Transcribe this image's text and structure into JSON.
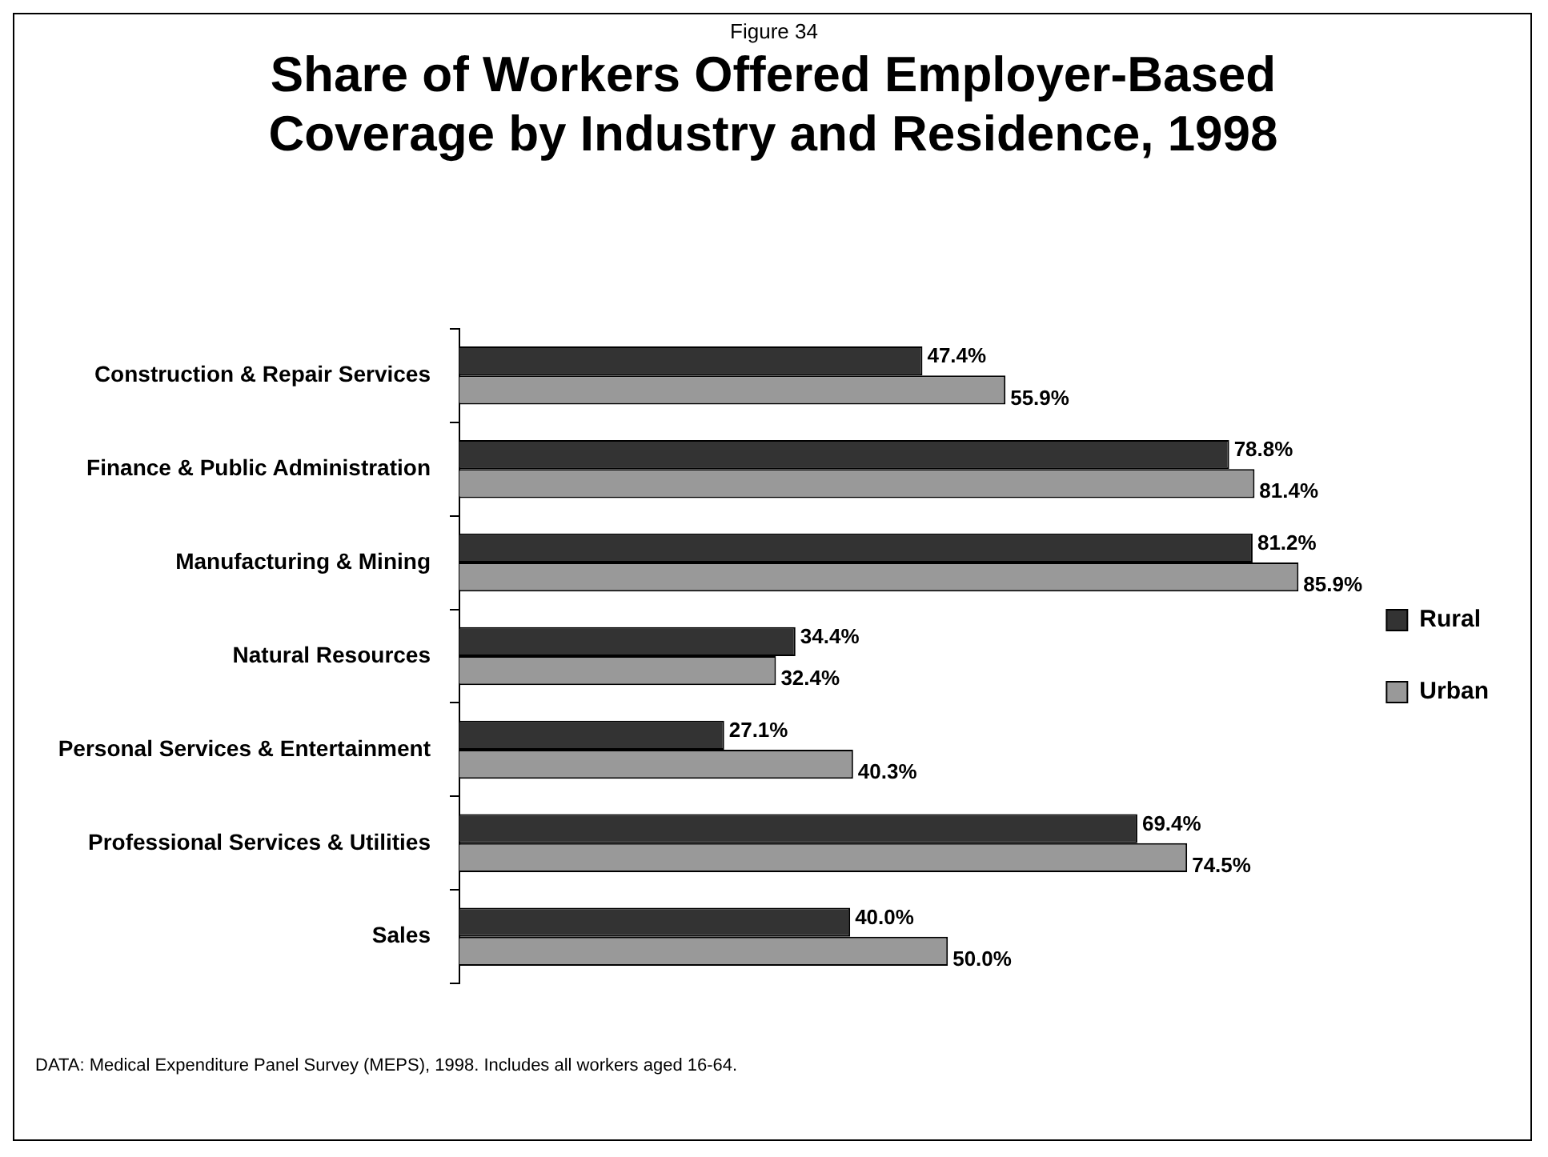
{
  "chart_data": {
    "type": "bar",
    "orientation": "horizontal",
    "title": "Share of Workers Offered Employer-Based Coverage by Industry and Residence, 1998",
    "annotations": [
      "Figure 34",
      "DATA: Medical Expenditure Panel Survey (MEPS), 1998.  Includes all workers aged 16-64."
    ],
    "categories": [
      "Construction & Repair Services",
      "Finance & Public Administration",
      "Manufacturing & Mining",
      "Natural Resources",
      "Personal Services & Entertainment",
      "Professional Services & Utilities",
      "Sales"
    ],
    "legend": "right",
    "grid": false,
    "tick_labels": "y",
    "series": [
      {
        "name": "Rural",
        "color": "#333333",
        "values": [
          47.4,
          78.8,
          81.2,
          34.4,
          27.1,
          69.4,
          40.0
        ],
        "value_labels": [
          "47.4%",
          "78.8%",
          "81.2%",
          "34.4%",
          "27.1%",
          "69.4%",
          "40.0%"
        ]
      },
      {
        "name": "Urban",
        "color": "#999999",
        "values": [
          55.9,
          81.4,
          85.9,
          32.4,
          40.3,
          74.5,
          50.0
        ],
        "value_labels": [
          "55.9%",
          "81.4%",
          "85.9%",
          "32.4%",
          "40.3%",
          "74.5%",
          "50.0%"
        ]
      }
    ]
  }
}
